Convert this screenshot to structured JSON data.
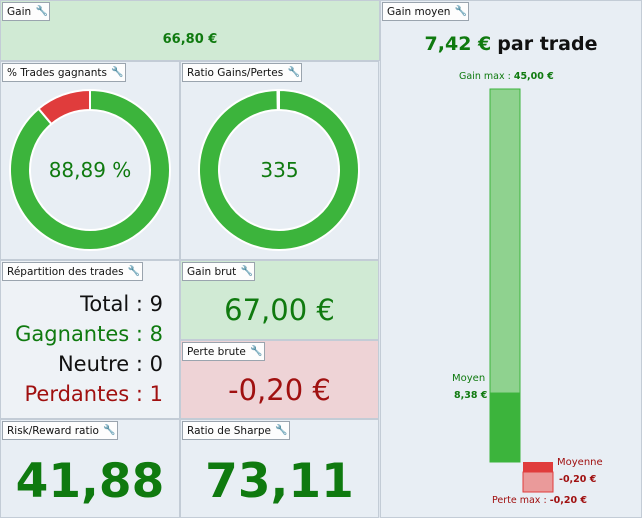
{
  "gain": {
    "title": "Gain",
    "value": "66,80 €"
  },
  "gain_moyen": {
    "title": "Gain moyen",
    "value": "7,42 €",
    "suffix": "par trade",
    "gain_max_label": "Gain max :",
    "gain_max_value": "45,00 €",
    "moyen_label": "Moyen",
    "moyen_value": "8,38 €",
    "moyenne_label": "Moyenne",
    "moyenne_value": "-0,20 €",
    "perte_max_label": "Perte max :",
    "perte_max_value": "-0,20 €",
    "gain_max_amount": 45.0,
    "gain_moyen_amount": 8.38,
    "perte_max_amount": -0.2,
    "perte_moyenne_amount": -0.2
  },
  "trades_gagnants": {
    "title": "% Trades gagnants",
    "value": "88,89 %",
    "percent": 88.89
  },
  "ratio_gains": {
    "title": "Ratio Gains/Pertes",
    "value": "335",
    "win_share": 99.7
  },
  "repartition": {
    "title": "Répartition des trades",
    "total_label": "Total : 9",
    "gagnantes_label": "Gagnantes : 8",
    "neutre_label": "Neutre : 0",
    "perdantes_label": "Perdantes : 1"
  },
  "gain_brut": {
    "title": "Gain brut",
    "value": "67,00 €"
  },
  "perte_brute": {
    "title": "Perte brute",
    "value": "-0,20 €"
  },
  "risk_reward": {
    "title": "Risk/Reward ratio",
    "value": "41,88"
  },
  "sharpe": {
    "title": "Ratio de Sharpe",
    "value": "73,11"
  },
  "colors": {
    "win": "#3cb43c",
    "loss": "#e03c3c",
    "text_green": "#0f7a0f",
    "text_red": "#a01010",
    "panel_green": "#d0ead4",
    "panel_red": "#eed3d6"
  }
}
